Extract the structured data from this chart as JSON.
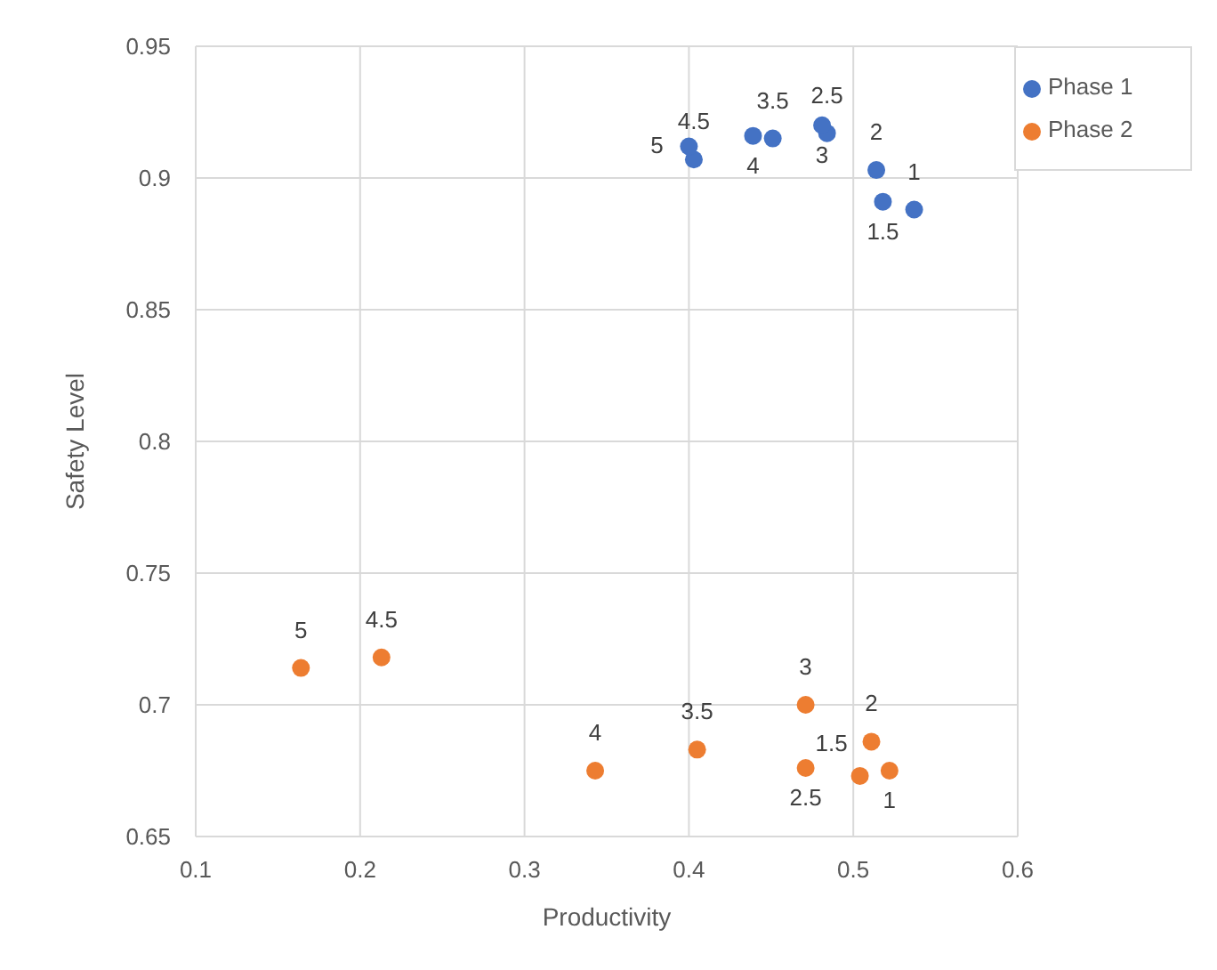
{
  "chart_data": {
    "type": "scatter",
    "xlabel": "Productivity",
    "ylabel": "Safety Level",
    "xlim": [
      0.1,
      0.6
    ],
    "xticks": [
      0.1,
      0.2,
      0.3,
      0.4,
      0.5,
      0.6
    ],
    "ylim": [
      0.65,
      0.95
    ],
    "yticks": [
      0.65,
      0.7,
      0.75,
      0.8,
      0.85,
      0.9,
      0.95
    ],
    "grid": true,
    "legend": "top right",
    "marker": "circle",
    "series": [
      {
        "name": "Phase 1",
        "color": "#4472c4",
        "x": [
          0.537,
          0.518,
          0.514,
          0.484,
          0.481,
          0.451,
          0.439,
          0.403,
          0.4
        ],
        "values": [
          0.888,
          0.891,
          0.903,
          0.917,
          0.92,
          0.915,
          0.916,
          0.907,
          0.912
        ]
      },
      {
        "name": "Phase 2",
        "color": "#ed7d31",
        "x": [
          0.522,
          0.504,
          0.511,
          0.471,
          0.471,
          0.405,
          0.343,
          0.213,
          0.164
        ],
        "values": [
          0.675,
          0.673,
          0.686,
          0.676,
          0.7,
          0.683,
          0.675,
          0.718,
          0.714
        ]
      }
    ],
    "annotations": [
      {
        "text": "1",
        "x": 0.537,
        "y": 0.888
      },
      {
        "text": "1.5",
        "x": 0.518,
        "y": 0.891
      },
      {
        "text": "2",
        "x": 0.514,
        "y": 0.903
      },
      {
        "text": "2.5",
        "x": 0.484,
        "y": 0.917
      },
      {
        "text": "3",
        "x": 0.481,
        "y": 0.92
      },
      {
        "text": "3.5",
        "x": 0.451,
        "y": 0.915
      },
      {
        "text": "4",
        "x": 0.439,
        "y": 0.916
      },
      {
        "text": "4.5",
        "x": 0.403,
        "y": 0.907
      },
      {
        "text": "5",
        "x": 0.4,
        "y": 0.912
      },
      {
        "text": "1",
        "x": 0.522,
        "y": 0.675
      },
      {
        "text": "1.5",
        "x": 0.504,
        "y": 0.673
      },
      {
        "text": "2",
        "x": 0.511,
        "y": 0.686
      },
      {
        "text": "2.5",
        "x": 0.471,
        "y": 0.676
      },
      {
        "text": "3",
        "x": 0.471,
        "y": 0.7
      },
      {
        "text": "3.5",
        "x": 0.405,
        "y": 0.683
      },
      {
        "text": "4",
        "x": 0.343,
        "y": 0.675
      },
      {
        "text": "4.5",
        "x": 0.213,
        "y": 0.718
      },
      {
        "text": "5",
        "x": 0.164,
        "y": 0.714
      }
    ]
  }
}
